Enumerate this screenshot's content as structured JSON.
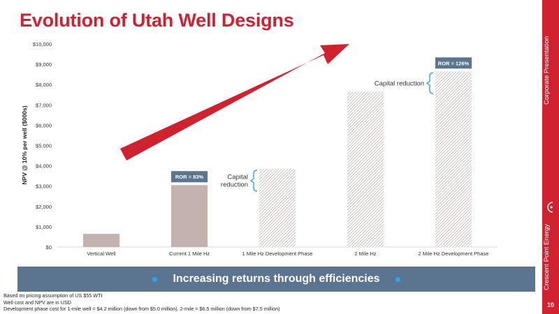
{
  "title": "Evolution of Utah Well Designs",
  "sidebar": {
    "top_text": "Corporate Presentation",
    "bottom_text": "Crescent Point Energy",
    "page_number": "10",
    "logo_icon": "crescent-point-logo-icon"
  },
  "banner": {
    "text": "Increasing returns through efficiencies"
  },
  "footnotes": [
    "Based on pricing assumption of US $55 WTI",
    "Well cost and NPV are in USD",
    "Development phase cost for 1-mile well = $4.2 million (down from $5.0 million). 2-mile = $6.5 million (down from $7.5 million)"
  ],
  "colors": {
    "accent_red": "#d0212f",
    "bar_solid": "#c3b2ad",
    "ror_label": "#5b7591",
    "banner_bg": "#5b7591",
    "bracket_blue": "#2fa3f0"
  },
  "chart_data": {
    "type": "bar",
    "ylabel": "NPV @ 10% per well ($000s)",
    "ylim": [
      0,
      10000
    ],
    "yticks": [
      0,
      1000,
      2000,
      3000,
      4000,
      5000,
      6000,
      7000,
      8000,
      9000,
      10000
    ],
    "ytick_labels": [
      "$0",
      "$1,000",
      "$2,000",
      "$3,000",
      "$4,000",
      "$5,000",
      "$6,000",
      "$7,000",
      "$8,000",
      "$9,000",
      "$10,000"
    ],
    "categories": [
      "Vertical Well",
      "Current 1 Mile Hz",
      "1 Mile Hz  Development Phase",
      "2 Mile Hz",
      "2 Mile Hz Development Phase"
    ],
    "values": [
      650,
      3050,
      3850,
      7650,
      8650
    ],
    "bar_styles": [
      "solid",
      "solid",
      "hatched",
      "hatched",
      "hatched"
    ],
    "ror_labels": [
      {
        "category_index": 1,
        "text": "ROR = 83%"
      },
      {
        "category_index": 4,
        "text": "ROR = 126%"
      }
    ],
    "annotations": [
      {
        "category_index": 2,
        "lines": [
          "Capital",
          "reduction"
        ]
      },
      {
        "category_index": 4,
        "lines": [
          "Capital reduction"
        ]
      }
    ],
    "grid": false,
    "legend": "none"
  }
}
